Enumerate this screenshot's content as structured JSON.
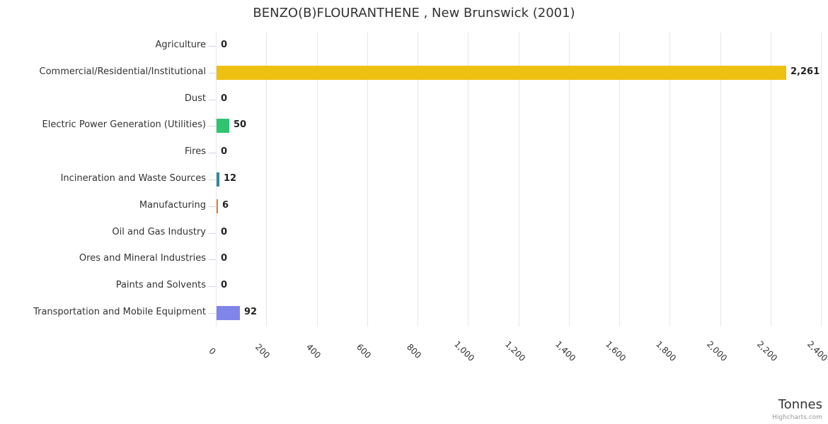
{
  "title": "BENZO(B)FLOURANTHENE , New Brunswick (2001)",
  "x_axis_title": "Tonnes",
  "credits": "Highcharts.com",
  "chart_data": {
    "type": "bar",
    "orientation": "horizontal",
    "title": "BENZO(B)FLOURANTHENE , New Brunswick (2001)",
    "xlabel": "Tonnes",
    "ylabel": "",
    "xlim": [
      0,
      2400
    ],
    "grid": true,
    "legend": false,
    "categories": [
      "Agriculture",
      "Commercial/Residential/Institutional",
      "Dust",
      "Electric Power Generation (Utilities)",
      "Fires",
      "Incineration and Waste Sources",
      "Manufacturing",
      "Oil and Gas Industry",
      "Ores and Mineral Industries",
      "Paints and Solvents",
      "Transportation and Mobile Equipment"
    ],
    "values": [
      0,
      2261,
      0,
      50,
      0,
      12,
      6,
      0,
      0,
      0,
      92
    ],
    "value_labels": [
      "0",
      "2,261",
      "0",
      "50",
      "0",
      "12",
      "6",
      "0",
      "0",
      "0",
      "92"
    ],
    "bar_colors": [
      null,
      "#eec011",
      null,
      "#2fc46f",
      null,
      "#2e8b95",
      "#e67f22",
      null,
      null,
      null,
      "#8085e9"
    ],
    "x_ticks": [
      {
        "value": 0,
        "label": "0"
      },
      {
        "value": 200,
        "label": "200"
      },
      {
        "value": 400,
        "label": "400"
      },
      {
        "value": 600,
        "label": "600"
      },
      {
        "value": 800,
        "label": "800"
      },
      {
        "value": 1000,
        "label": "1,000"
      },
      {
        "value": 1200,
        "label": "1,200"
      },
      {
        "value": 1400,
        "label": "1,400"
      },
      {
        "value": 1600,
        "label": "1,600"
      },
      {
        "value": 1800,
        "label": "1,800"
      },
      {
        "value": 2000,
        "label": "2,000"
      },
      {
        "value": 2200,
        "label": "2,200"
      },
      {
        "value": 2400,
        "label": "2,400"
      }
    ],
    "colors": {
      "grid_line": "#e6e6e6",
      "axis_line": "#ccd6eb",
      "label_text": "#333333",
      "data_label_text": "#222222"
    }
  }
}
